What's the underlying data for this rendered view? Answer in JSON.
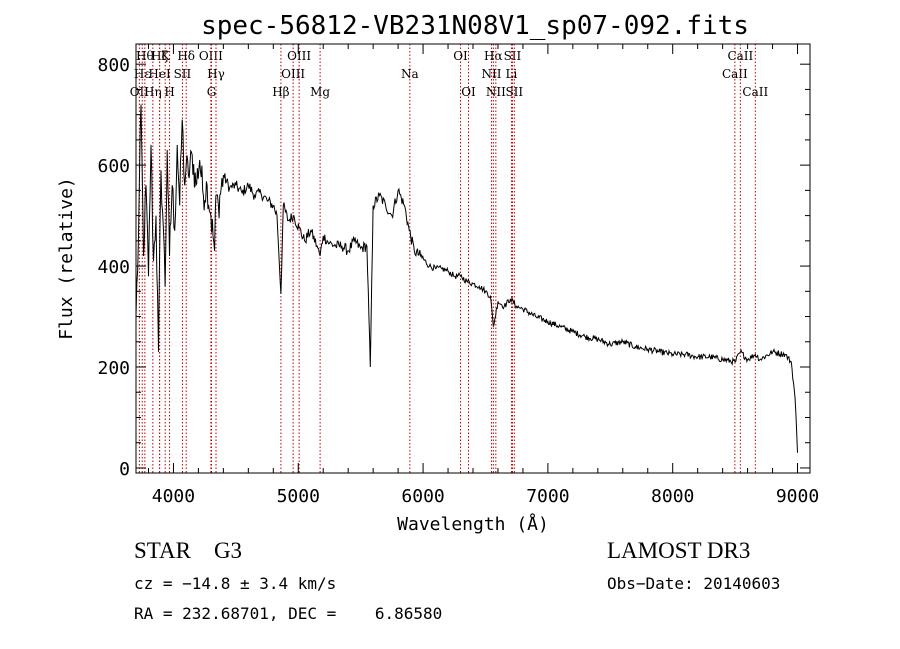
{
  "chart_data": {
    "type": "line",
    "title": "spec-56812-VB231N08V1_sp07-092.fits",
    "xlabel": "Wavelength (Å)",
    "ylabel": "Flux (relative)",
    "xlim": [
      3700,
      9100
    ],
    "ylim": [
      -10,
      840
    ],
    "xticks": [
      4000,
      5000,
      6000,
      7000,
      8000,
      9000
    ],
    "xtick_labels": [
      "4000",
      "5000",
      "6000",
      "7000",
      "8000",
      "9000"
    ],
    "yticks": [
      0,
      200,
      400,
      600,
      800
    ],
    "ytick_labels": [
      "0",
      "200",
      "400",
      "600",
      "800"
    ],
    "grid": false,
    "series": [
      {
        "name": "flux",
        "x": [
          3700,
          3720,
          3740,
          3760,
          3780,
          3800,
          3820,
          3840,
          3860,
          3880,
          3900,
          3920,
          3933,
          3950,
          3968,
          3990,
          4010,
          4030,
          4050,
          4070,
          4090,
          4102,
          4120,
          4150,
          4180,
          4210,
          4240,
          4270,
          4300,
          4330,
          4340,
          4360,
          4400,
          4450,
          4500,
          4550,
          4600,
          4650,
          4700,
          4750,
          4800,
          4830,
          4861,
          4880,
          4920,
          4960,
          5007,
          5050,
          5100,
          5150,
          5175,
          5200,
          5250,
          5300,
          5350,
          5400,
          5450,
          5500,
          5550,
          5577,
          5600,
          5650,
          5700,
          5750,
          5800,
          5850,
          5890,
          5930,
          5980,
          6050,
          6100,
          6150,
          6200,
          6250,
          6300,
          6350,
          6400,
          6450,
          6500,
          6540,
          6563,
          6600,
          6650,
          6700,
          6750,
          6800,
          6900,
          7000,
          7100,
          7200,
          7300,
          7400,
          7500,
          7600,
          7700,
          7800,
          7900,
          8000,
          8100,
          8200,
          8300,
          8400,
          8500,
          8542,
          8600,
          8662,
          8700,
          8800,
          8900,
          8950,
          8980,
          9000
        ],
        "values": [
          300,
          460,
          720,
          420,
          560,
          380,
          640,
          410,
          500,
          230,
          590,
          470,
          360,
          630,
          420,
          560,
          470,
          640,
          520,
          690,
          560,
          600,
          580,
          620,
          560,
          610,
          540,
          560,
          500,
          430,
          540,
          520,
          580,
          555,
          560,
          545,
          560,
          540,
          545,
          530,
          520,
          500,
          345,
          520,
          490,
          500,
          475,
          450,
          470,
          440,
          420,
          460,
          445,
          440,
          440,
          430,
          450,
          435,
          440,
          200,
          520,
          540,
          520,
          500,
          550,
          520,
          470,
          430,
          420,
          400,
          395,
          395,
          390,
          380,
          380,
          370,
          365,
          360,
          350,
          340,
          280,
          330,
          320,
          335,
          320,
          315,
          300,
          290,
          280,
          270,
          260,
          255,
          245,
          250,
          240,
          235,
          230,
          225,
          225,
          220,
          220,
          215,
          210,
          230,
          215,
          225,
          215,
          230,
          225,
          210,
          140,
          30
        ]
      }
    ],
    "lines": [
      {
        "label": "OII",
        "wl": 3727,
        "row": 2
      },
      {
        "label": "Hε",
        "wl": 3750,
        "row": 1
      },
      {
        "label": "Hθ",
        "wl": 3771,
        "row": 0
      },
      {
        "label": "Hη",
        "wl": 3835,
        "row": 2
      },
      {
        "label": "Hζ",
        "wl": 3889,
        "row": 0
      },
      {
        "label": "HeI",
        "wl": 3889,
        "row": 1
      },
      {
        "label": "K",
        "wl": 3934,
        "row": 0
      },
      {
        "label": "H",
        "wl": 3969,
        "row": 2
      },
      {
        "label": "SII",
        "wl": 4072,
        "row": 1
      },
      {
        "label": "Hδ",
        "wl": 4102,
        "row": 0
      },
      {
        "label": "OIII",
        "wl": 4300,
        "row": 0
      },
      {
        "label": "G",
        "wl": 4305,
        "row": 2
      },
      {
        "label": "Hγ",
        "wl": 4341,
        "row": 1
      },
      {
        "label": "Hβ",
        "wl": 4861,
        "row": 2
      },
      {
        "label": "OIII",
        "wl": 4959,
        "row": 1
      },
      {
        "label": "OIII",
        "wl": 5007,
        "row": 0
      },
      {
        "label": "Mg",
        "wl": 5175,
        "row": 2
      },
      {
        "label": "Na",
        "wl": 5894,
        "row": 1
      },
      {
        "label": "OI",
        "wl": 6300,
        "row": 0
      },
      {
        "label": "OI",
        "wl": 6364,
        "row": 2
      },
      {
        "label": "NII",
        "wl": 6548,
        "row": 1
      },
      {
        "label": "Hα",
        "wl": 6563,
        "row": 0
      },
      {
        "label": "NII",
        "wl": 6583,
        "row": 2
      },
      {
        "label": "SII",
        "wl": 6716,
        "row": 0
      },
      {
        "label": "Li",
        "wl": 6708,
        "row": 1
      },
      {
        "label": "SII",
        "wl": 6731,
        "row": 2
      },
      {
        "label": "CaII",
        "wl": 8498,
        "row": 1
      },
      {
        "label": "CaII",
        "wl": 8542,
        "row": 0
      },
      {
        "label": "CaII",
        "wl": 8662,
        "row": 2
      }
    ]
  },
  "footer": {
    "object_type": "STAR    G3",
    "survey": "LAMOST DR3",
    "redshift": "cz = −14.8 ± 3.4 km/s",
    "obs_date": "Obs−Date: 20140603",
    "coords": "RA = 232.68701, DEC =    6.86580"
  }
}
